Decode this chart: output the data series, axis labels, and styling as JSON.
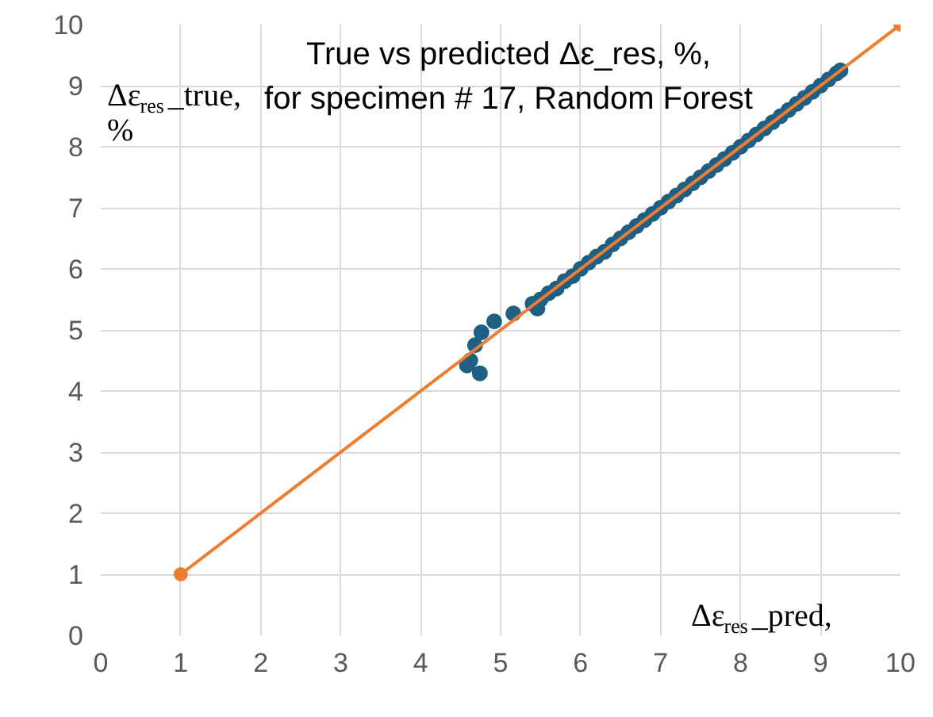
{
  "chart_data": {
    "type": "scatter",
    "title": "True vs predicted Δε_res, %,\nfor specimen # 17, Random Forest",
    "xlabel": "Δε$_{res}$_pred,",
    "ylabel": "Δε$_{res}$_true,\n%",
    "xlim": [
      0,
      10
    ],
    "ylim": [
      0,
      10
    ],
    "xticks": [
      0,
      1,
      2,
      3,
      4,
      5,
      6,
      7,
      8,
      9,
      10
    ],
    "yticks": [
      0,
      1,
      2,
      3,
      4,
      5,
      6,
      7,
      8,
      9,
      10
    ],
    "grid": true,
    "marker": "circle",
    "series": [
      {
        "color": "#1f5f84",
        "x": [
          4.58,
          4.62,
          4.68,
          4.74,
          4.76,
          4.92,
          5.16,
          5.4,
          5.46,
          5.5,
          5.6,
          5.7,
          5.8,
          5.9,
          6.0,
          6.1,
          6.2,
          6.3,
          6.4,
          6.5,
          6.6,
          6.7,
          6.8,
          6.9,
          7.0,
          7.1,
          7.2,
          7.3,
          7.4,
          7.5,
          7.6,
          7.7,
          7.8,
          7.9,
          8.0,
          8.1,
          8.2,
          8.3,
          8.4,
          8.5,
          8.6,
          8.7,
          8.8,
          8.9,
          9.0,
          9.1,
          9.2,
          9.25
        ],
        "values": [
          4.42,
          4.5,
          4.75,
          4.29,
          4.96,
          5.14,
          5.27,
          5.43,
          5.35,
          5.5,
          5.6,
          5.68,
          5.8,
          5.88,
          6.0,
          6.1,
          6.2,
          6.28,
          6.4,
          6.5,
          6.6,
          6.7,
          6.8,
          6.9,
          7.0,
          7.1,
          7.2,
          7.3,
          7.4,
          7.5,
          7.6,
          7.7,
          7.8,
          7.9,
          8.0,
          8.1,
          8.2,
          8.3,
          8.4,
          8.5,
          8.6,
          8.7,
          8.8,
          8.9,
          9.0,
          9.1,
          9.2,
          9.25
        ]
      },
      {
        "type": "line",
        "color": "#ed7d31",
        "x": [
          1,
          10
        ],
        "values": [
          1,
          10
        ]
      }
    ]
  }
}
